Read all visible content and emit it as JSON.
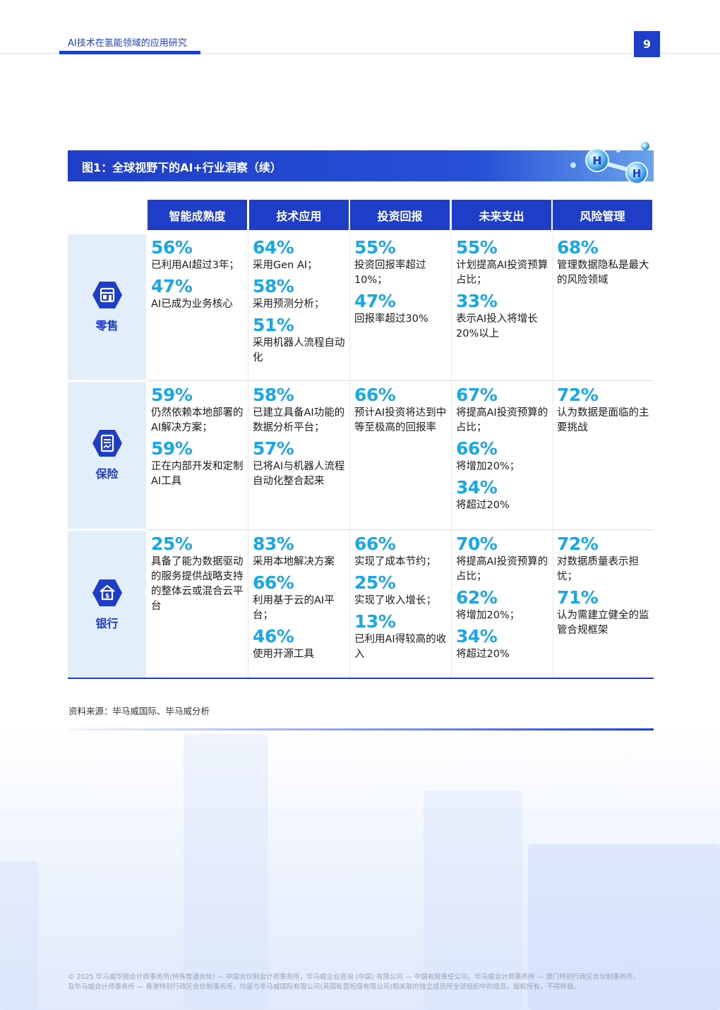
{
  "header": {
    "title": "AI技术在氢能领域的应用研究",
    "page_number": "9"
  },
  "figure": {
    "title": "图1：全球视野下的AI+行业洞察（续）"
  },
  "columns": [
    "智能成熟度",
    "技术应用",
    "投资回报",
    "未来支出",
    "风险管理"
  ],
  "rows": [
    {
      "label": "零售",
      "icon": "store-icon",
      "cells": [
        [
          {
            "pct": "56%",
            "text": "已利用AI超过3年；"
          },
          {
            "pct": "47%",
            "text": "AI已成为业务核心"
          }
        ],
        [
          {
            "pct": "64%",
            "text": "采用Gen AI；"
          },
          {
            "pct": "58%",
            "text": "采用预测分析；"
          },
          {
            "pct": "51%",
            "text": "采用机器人流程自动化"
          }
        ],
        [
          {
            "pct": "55%",
            "text": "投资回报率超过10%；"
          },
          {
            "pct": "47%",
            "text": "回报率超过30%"
          }
        ],
        [
          {
            "pct": "55%",
            "text": "计划提高AI投资预算占比；"
          },
          {
            "pct": "33%",
            "text": "表示AI投入将增长20%以上"
          }
        ],
        [
          {
            "pct": "68%",
            "text": "管理数据隐私是最大的风险领域"
          }
        ]
      ]
    },
    {
      "label": "保险",
      "icon": "document-icon",
      "cells": [
        [
          {
            "pct": "59%",
            "text": "仍然依赖本地部署的AI解决方案；"
          },
          {
            "pct": "59%",
            "text": "正在内部开发和定制AI工具"
          }
        ],
        [
          {
            "pct": "58%",
            "text": "已建立具备AI功能的数据分析平台；"
          },
          {
            "pct": "57%",
            "text": "已将AI与机器人流程自动化整合起来"
          }
        ],
        [
          {
            "pct": "66%",
            "text": "预计AI投资将达到中等至极高的回报率"
          }
        ],
        [
          {
            "pct": "67%",
            "text": "将提高AI投资预算的占比；"
          },
          {
            "pct": "66%",
            "text": "将增加20%；"
          },
          {
            "pct": "34%",
            "text": "将超过20%"
          }
        ],
        [
          {
            "pct": "72%",
            "text": "认为数据是面临的主要挑战"
          }
        ]
      ]
    },
    {
      "label": "银行",
      "icon": "bank-icon",
      "cells": [
        [
          {
            "pct": "25%",
            "text": "具备了能为数据驱动的服务提供战略支持的整体云或混合云平台"
          }
        ],
        [
          {
            "pct": "83%",
            "text": "采用本地解决方案"
          },
          {
            "pct": "66%",
            "text": "利用基于云的AI平台；"
          },
          {
            "pct": "46%",
            "text": "使用开源工具"
          }
        ],
        [
          {
            "pct": "66%",
            "text": "实现了成本节约；"
          },
          {
            "pct": "25%",
            "text": "实现了收入增长；"
          },
          {
            "pct": "13%",
            "text": "已利用AI得较高的收入"
          }
        ],
        [
          {
            "pct": "70%",
            "text": "将提高AI投资预算的占比；"
          },
          {
            "pct": "62%",
            "text": "将增加20%；"
          },
          {
            "pct": "34%",
            "text": "将超过20%"
          }
        ],
        [
          {
            "pct": "72%",
            "text": "对数据质量表示担忧；"
          },
          {
            "pct": "71%",
            "text": "认为需建立健全的监管合规框架"
          }
        ]
      ]
    }
  ],
  "source": "资料来源：毕马威国际、毕马威分析",
  "footer": {
    "line1": "© 2025 毕马威华振会计师事务所(特殊普通合伙) — 中国合伙制会计师事务所，毕马威企业咨询 (中国) 有限公司 — 中国有限责任公司，毕马威会计师事务所 — 澳门特别行政区合伙制事务所，",
    "line2": "及毕马威会计师事务所 — 香港特别行政区合伙制事务所，均是与毕马威国际有限公司(英国私营担保有限公司)相关联的独立成员所全球组织中的成员。版权所有，不得转载。"
  },
  "colors": {
    "brand_blue": "#1f3ec7",
    "stat_cyan": "#19a8e6",
    "row_label_bg": "#e3eefb"
  }
}
